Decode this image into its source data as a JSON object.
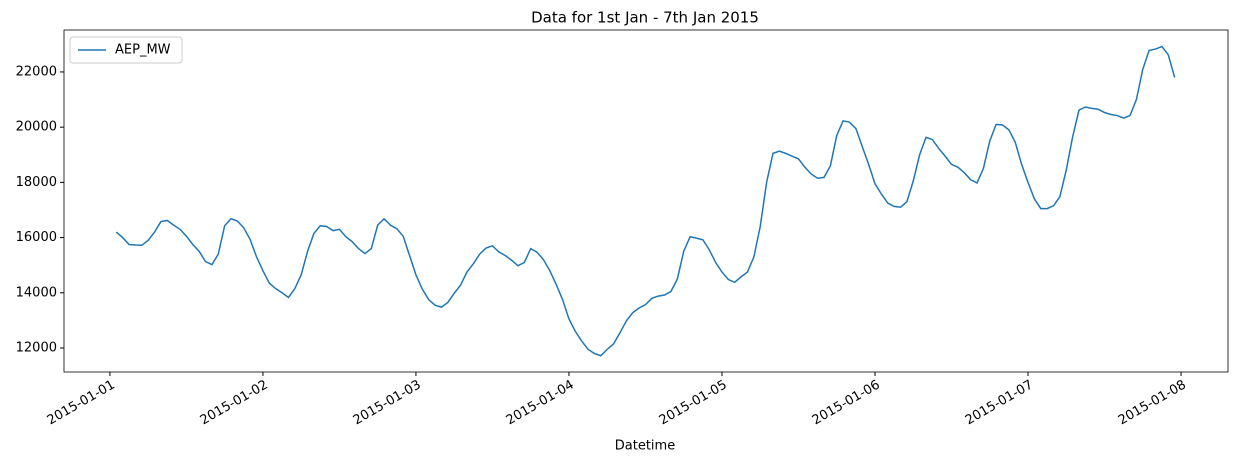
{
  "chart_data": {
    "type": "line",
    "title": "Data for 1st Jan - 7th Jan 2015",
    "x_label": "Datetime",
    "x": [
      "2015-01-01 01:00",
      "2015-01-01 02:00",
      "2015-01-01 03:00",
      "2015-01-01 04:00",
      "2015-01-01 05:00",
      "2015-01-01 06:00",
      "2015-01-01 07:00",
      "2015-01-01 08:00",
      "2015-01-01 09:00",
      "2015-01-01 10:00",
      "2015-01-01 11:00",
      "2015-01-01 12:00",
      "2015-01-01 13:00",
      "2015-01-01 14:00",
      "2015-01-01 15:00",
      "2015-01-01 16:00",
      "2015-01-01 17:00",
      "2015-01-01 18:00",
      "2015-01-01 19:00",
      "2015-01-01 20:00",
      "2015-01-01 21:00",
      "2015-01-01 22:00",
      "2015-01-01 23:00",
      "2015-01-02 00:00",
      "2015-01-02 01:00",
      "2015-01-02 02:00",
      "2015-01-02 03:00",
      "2015-01-02 04:00",
      "2015-01-02 05:00",
      "2015-01-02 06:00",
      "2015-01-02 07:00",
      "2015-01-02 08:00",
      "2015-01-02 09:00",
      "2015-01-02 10:00",
      "2015-01-02 11:00",
      "2015-01-02 12:00",
      "2015-01-02 13:00",
      "2015-01-02 14:00",
      "2015-01-02 15:00",
      "2015-01-02 16:00",
      "2015-01-02 17:00",
      "2015-01-02 18:00",
      "2015-01-02 19:00",
      "2015-01-02 20:00",
      "2015-01-02 21:00",
      "2015-01-02 22:00",
      "2015-01-02 23:00",
      "2015-01-03 00:00",
      "2015-01-03 01:00",
      "2015-01-03 02:00",
      "2015-01-03 03:00",
      "2015-01-03 04:00",
      "2015-01-03 05:00",
      "2015-01-03 06:00",
      "2015-01-03 07:00",
      "2015-01-03 08:00",
      "2015-01-03 09:00",
      "2015-01-03 10:00",
      "2015-01-03 11:00",
      "2015-01-03 12:00",
      "2015-01-03 13:00",
      "2015-01-03 14:00",
      "2015-01-03 15:00",
      "2015-01-03 16:00",
      "2015-01-03 17:00",
      "2015-01-03 18:00",
      "2015-01-03 19:00",
      "2015-01-03 20:00",
      "2015-01-03 21:00",
      "2015-01-03 22:00",
      "2015-01-03 23:00",
      "2015-01-04 00:00",
      "2015-01-04 01:00",
      "2015-01-04 02:00",
      "2015-01-04 03:00",
      "2015-01-04 04:00",
      "2015-01-04 05:00",
      "2015-01-04 06:00",
      "2015-01-04 07:00",
      "2015-01-04 08:00",
      "2015-01-04 09:00",
      "2015-01-04 10:00",
      "2015-01-04 11:00",
      "2015-01-04 12:00",
      "2015-01-04 13:00",
      "2015-01-04 14:00",
      "2015-01-04 15:00",
      "2015-01-04 16:00",
      "2015-01-04 17:00",
      "2015-01-04 18:00",
      "2015-01-04 19:00",
      "2015-01-04 20:00",
      "2015-01-04 21:00",
      "2015-01-04 22:00",
      "2015-01-04 23:00",
      "2015-01-05 00:00",
      "2015-01-05 01:00",
      "2015-01-05 02:00",
      "2015-01-05 03:00",
      "2015-01-05 04:00",
      "2015-01-05 05:00",
      "2015-01-05 06:00",
      "2015-01-05 07:00",
      "2015-01-05 08:00",
      "2015-01-05 09:00",
      "2015-01-05 10:00",
      "2015-01-05 11:00",
      "2015-01-05 12:00",
      "2015-01-05 13:00",
      "2015-01-05 14:00",
      "2015-01-05 15:00",
      "2015-01-05 16:00",
      "2015-01-05 17:00",
      "2015-01-05 18:00",
      "2015-01-05 19:00",
      "2015-01-05 20:00",
      "2015-01-05 21:00",
      "2015-01-05 22:00",
      "2015-01-05 23:00",
      "2015-01-06 00:00",
      "2015-01-06 01:00",
      "2015-01-06 02:00",
      "2015-01-06 03:00",
      "2015-01-06 04:00",
      "2015-01-06 05:00",
      "2015-01-06 06:00",
      "2015-01-06 07:00",
      "2015-01-06 08:00",
      "2015-01-06 09:00",
      "2015-01-06 10:00",
      "2015-01-06 11:00",
      "2015-01-06 12:00",
      "2015-01-06 13:00",
      "2015-01-06 14:00",
      "2015-01-06 15:00",
      "2015-01-06 16:00",
      "2015-01-06 17:00",
      "2015-01-06 18:00",
      "2015-01-06 19:00",
      "2015-01-06 20:00",
      "2015-01-06 21:00",
      "2015-01-06 22:00",
      "2015-01-06 23:00",
      "2015-01-07 00:00",
      "2015-01-07 01:00",
      "2015-01-07 02:00",
      "2015-01-07 03:00",
      "2015-01-07 04:00",
      "2015-01-07 05:00",
      "2015-01-07 06:00",
      "2015-01-07 07:00",
      "2015-01-07 08:00",
      "2015-01-07 09:00",
      "2015-01-07 10:00",
      "2015-01-07 11:00",
      "2015-01-07 12:00",
      "2015-01-07 13:00",
      "2015-01-07 14:00",
      "2015-01-07 15:00",
      "2015-01-07 16:00",
      "2015-01-07 17:00",
      "2015-01-07 18:00",
      "2015-01-07 19:00",
      "2015-01-07 20:00",
      "2015-01-07 21:00",
      "2015-01-07 22:00",
      "2015-01-07 23:00"
    ],
    "series": [
      {
        "name": "AEP_MW",
        "color": "#1f77b4",
        "values": [
          16200,
          16000,
          15750,
          15730,
          15720,
          15900,
          16200,
          16580,
          16620,
          16450,
          16300,
          16050,
          15750,
          15500,
          15130,
          15020,
          15400,
          16430,
          16680,
          16600,
          16350,
          15930,
          15300,
          14800,
          14350,
          14150,
          14000,
          13830,
          14150,
          14650,
          15500,
          16150,
          16430,
          16400,
          16250,
          16300,
          16030,
          15850,
          15600,
          15420,
          15600,
          16450,
          16680,
          16450,
          16320,
          16050,
          15350,
          14650,
          14130,
          13750,
          13550,
          13480,
          13650,
          13980,
          14280,
          14750,
          15050,
          15400,
          15620,
          15700,
          15480,
          15350,
          15180,
          14980,
          15100,
          15600,
          15470,
          15200,
          14800,
          14300,
          13750,
          13050,
          12600,
          12250,
          11950,
          11800,
          11720,
          11950,
          12150,
          12550,
          12980,
          13280,
          13450,
          13570,
          13800,
          13880,
          13920,
          14050,
          14500,
          15500,
          16030,
          15980,
          15920,
          15560,
          15100,
          14750,
          14480,
          14380,
          14580,
          14750,
          15300,
          16400,
          18000,
          19050,
          19130,
          19050,
          18950,
          18850,
          18550,
          18300,
          18150,
          18180,
          18600,
          19700,
          20230,
          20180,
          19950,
          19300,
          18650,
          17950,
          17580,
          17250,
          17130,
          17100,
          17300,
          18050,
          19000,
          19630,
          19550,
          19230,
          18950,
          18650,
          18550,
          18350,
          18100,
          17980,
          18500,
          19500,
          20100,
          20080,
          19900,
          19450,
          18650,
          18000,
          17400,
          17050,
          17050,
          17150,
          17480,
          18450,
          19650,
          20620,
          20730,
          20680,
          20650,
          20530,
          20460,
          20420,
          20330,
          20420,
          21000,
          22100,
          22780,
          22830,
          22920,
          22620,
          21800
        ]
      }
    ],
    "xlim": [
      "2014-12-31 16:48",
      "2015-01-08 07:22"
    ],
    "xticks": [
      "2015-01-01",
      "2015-01-02",
      "2015-01-03",
      "2015-01-04",
      "2015-01-05",
      "2015-01-06",
      "2015-01-07",
      "2015-01-08"
    ],
    "ylim": [
      11130,
      23520
    ],
    "yticks": [
      12000,
      14000,
      16000,
      18000,
      20000,
      22000
    ],
    "legend": "upper left"
  }
}
